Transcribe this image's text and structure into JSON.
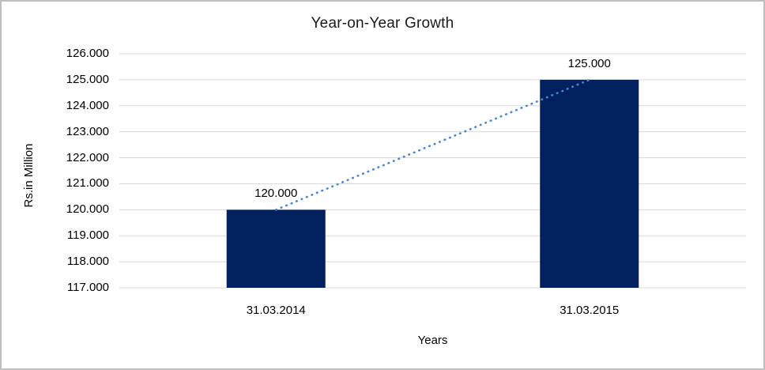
{
  "window": {
    "background": "#FFFFFF",
    "border_color": "#BFBFBF"
  },
  "chart_data": {
    "type": "bar",
    "title": "Year-on-Year Growth",
    "xlabel": "Years",
    "ylabel": "Rs.in Million",
    "categories": [
      "31.03.2014",
      "31.03.2015"
    ],
    "values": [
      120,
      125
    ],
    "data_labels": [
      "120.000",
      "125.000"
    ],
    "ylim": [
      117,
      126
    ],
    "ytick_values": [
      126,
      125,
      124,
      123,
      122,
      121,
      120,
      119,
      118,
      117
    ],
    "ytick_labels": [
      "126.000",
      "125.000",
      "124.000",
      "123.000",
      "122.000",
      "121.000",
      "120.000",
      "119.000",
      "118.000",
      "117.000"
    ],
    "grid": true,
    "legend": "none",
    "bar_color": "#00215E",
    "gridline_color": "#D9D9D9",
    "text_color": "#000000",
    "trendline": {
      "style": "dotted",
      "color": "#4A86C8",
      "connects": [
        "31.03.2014",
        "31.03.2015"
      ]
    }
  }
}
